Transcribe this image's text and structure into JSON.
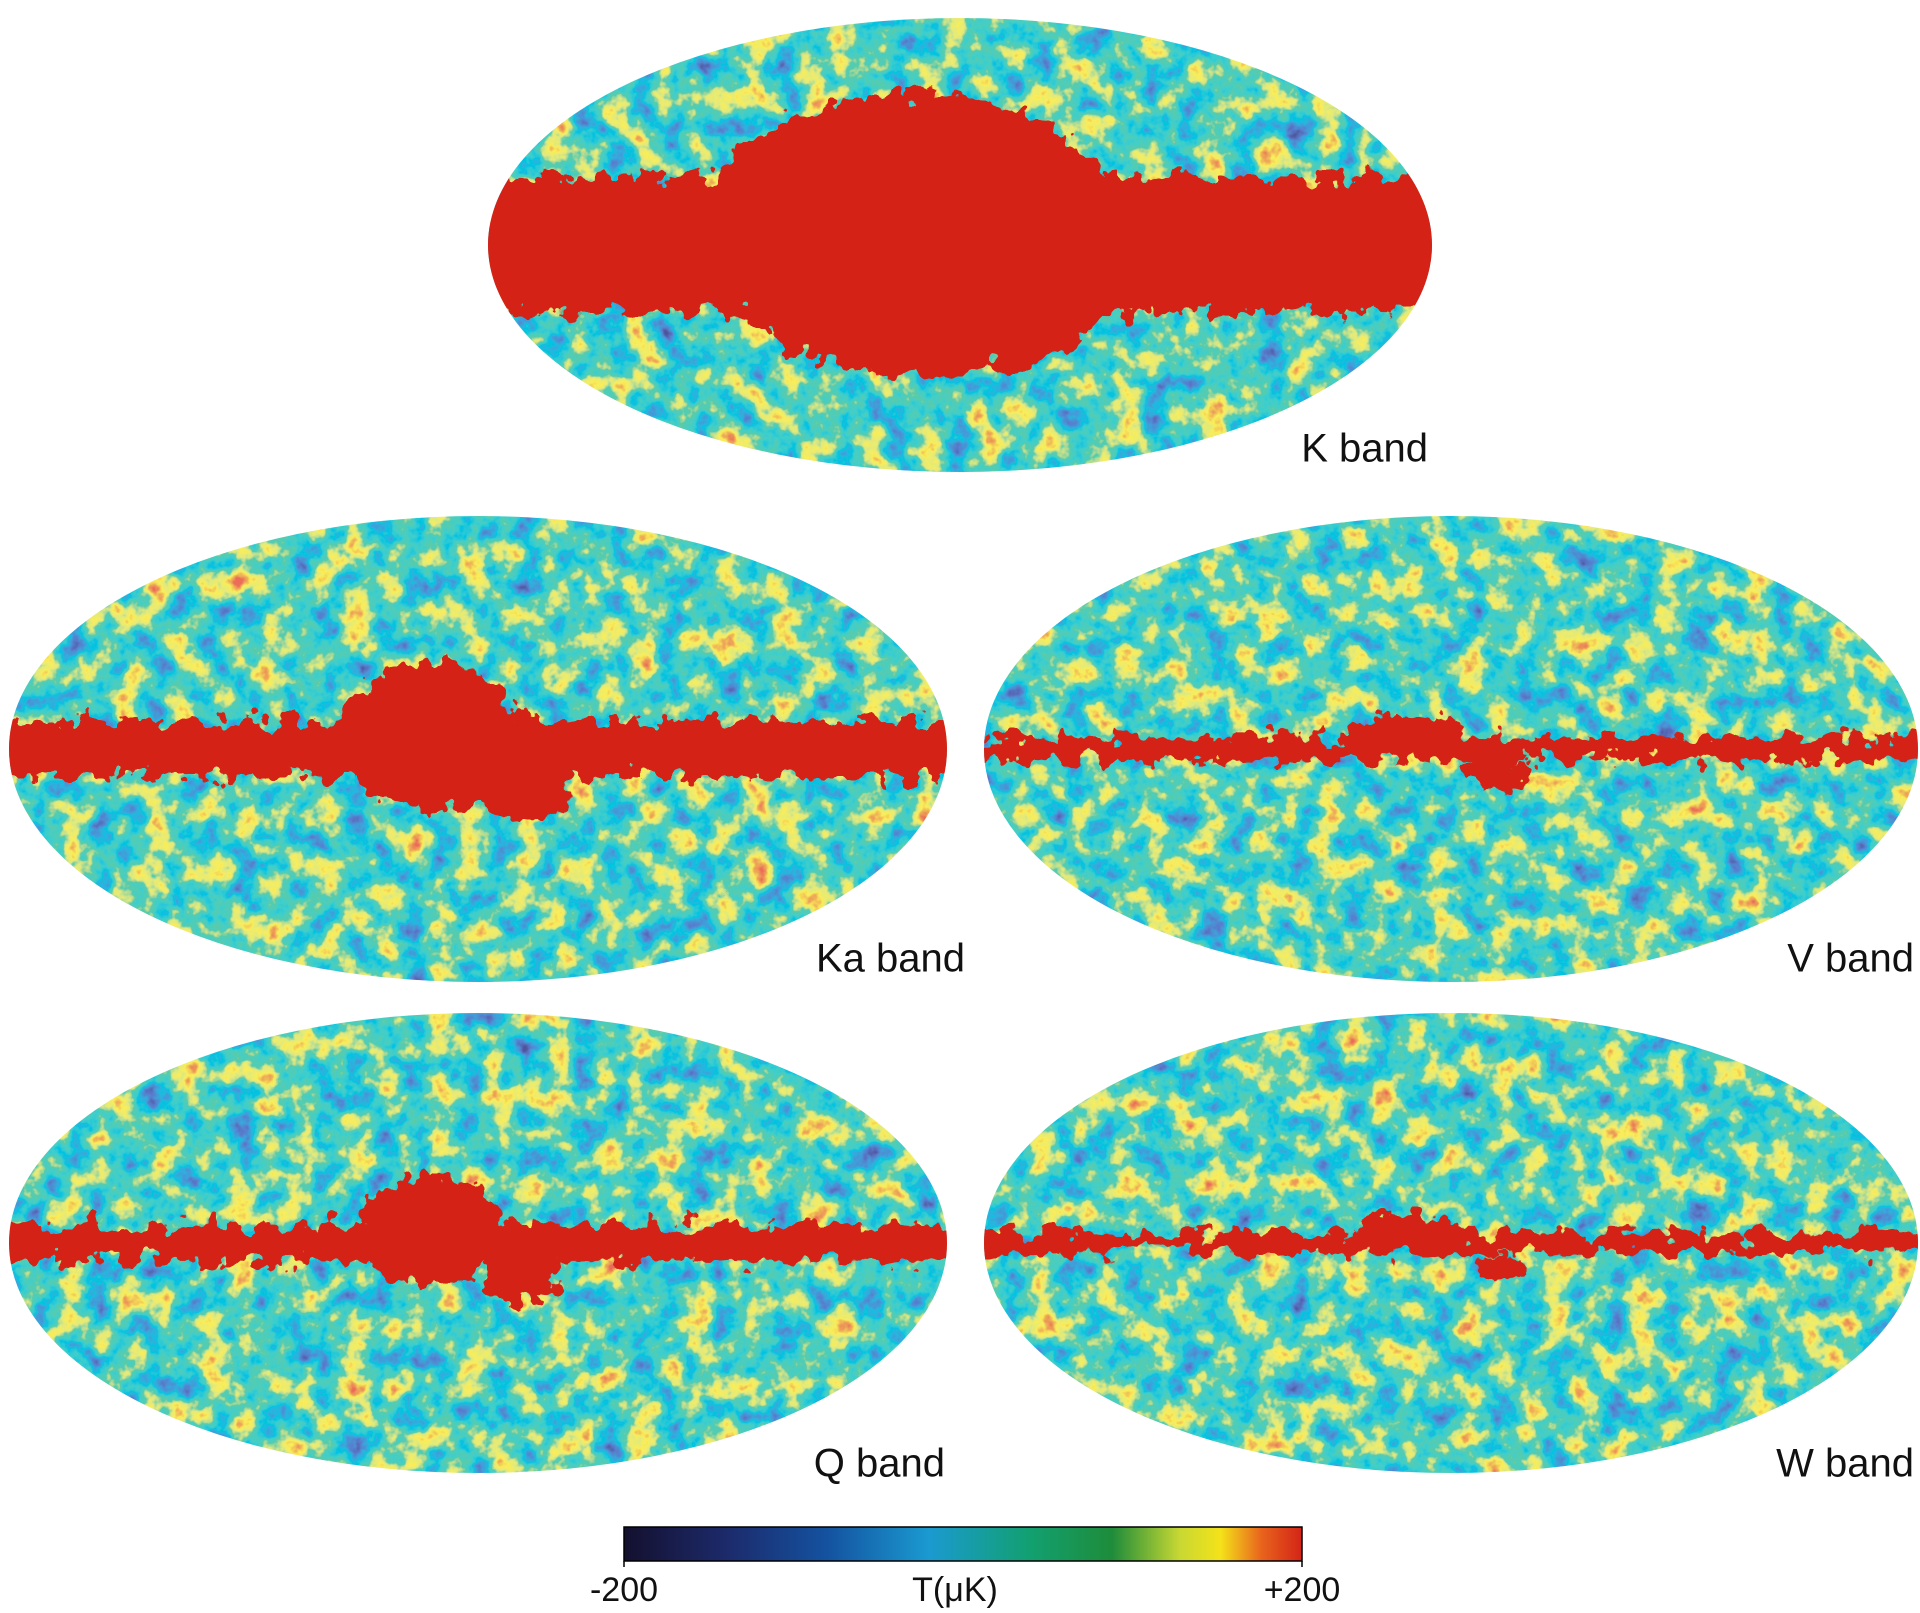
{
  "maps": [
    {
      "label": "K band"
    },
    {
      "label": "Ka band"
    },
    {
      "label": "V band"
    },
    {
      "label": "Q band"
    },
    {
      "label": "W band"
    }
  ],
  "colorbar": {
    "label": "T(μK)",
    "lim": [
      -200,
      200
    ],
    "ticks": [
      -200,
      {
        "value": 200,
        "label": "+200"
      }
    ]
  }
}
